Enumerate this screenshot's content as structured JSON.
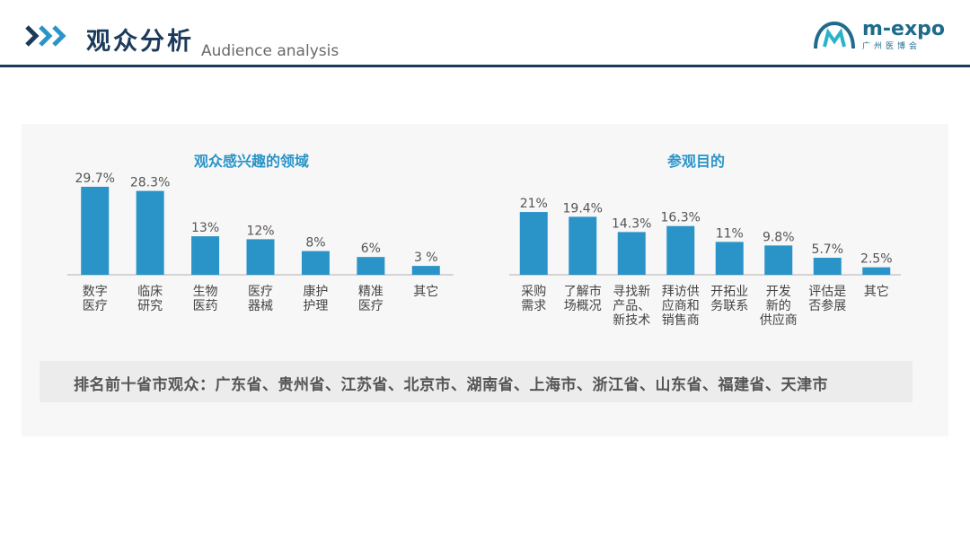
{
  "header": {
    "title": "观众分析",
    "subtitle": "Audience analysis",
    "logo_text": "m-expo",
    "logo_sub": "广州医博会"
  },
  "colors": {
    "bar": "#2a94c8",
    "accent": "#1c3a5a"
  },
  "chart_data": [
    {
      "type": "bar",
      "title": "观众感兴趣的领域",
      "categories": [
        "数字\n医疗",
        "临床\n研究",
        "生物\n医药",
        "医疗\n器械",
        "康护\n护理",
        "精准\n医疗",
        "其它"
      ],
      "values": [
        29.7,
        28.3,
        13,
        12,
        8,
        6,
        3
      ],
      "data_labels": [
        "29.7%",
        "28.3%",
        "13%",
        "12%",
        "8%",
        "6%",
        "3 %"
      ]
    },
    {
      "type": "bar",
      "title": "参观目的",
      "categories": [
        "采购\n需求",
        "了解市\n场概况",
        "寻找新\n产品、\n新技术",
        "拜访供\n应商和\n销售商",
        "开拓业\n务联系",
        "开发\n新的\n供应商",
        "评估是\n否参展",
        "其它"
      ],
      "values": [
        21,
        19.4,
        14.3,
        16.3,
        11,
        9.8,
        5.7,
        2.5
      ],
      "data_labels": [
        "21%",
        "19.4%",
        "14.3%",
        "16.3%",
        "11%",
        "9.8%",
        "5.7%",
        "2.5%"
      ]
    }
  ],
  "banner": {
    "text": "排名前十省市观众：广东省、贵州省、江苏省、北京市、湖南省、上海市、浙江省、山东省、福建省、天津市"
  }
}
